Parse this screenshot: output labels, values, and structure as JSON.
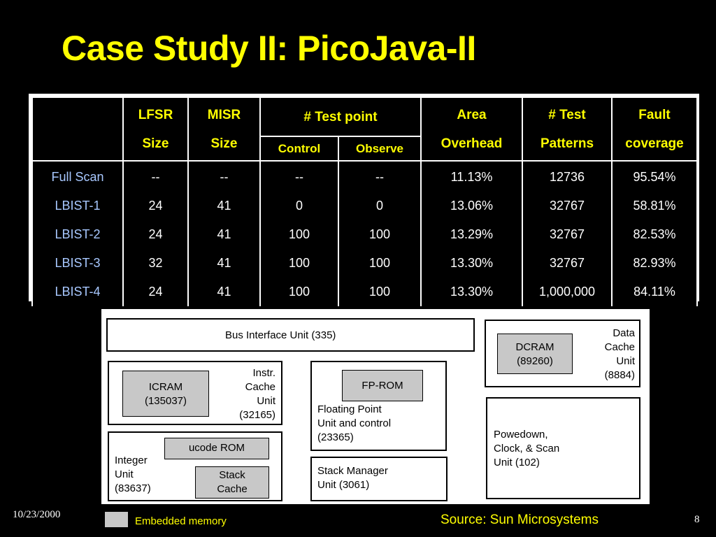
{
  "title": "Case Study II: PicoJava-II",
  "table": {
    "headers": {
      "lfsr": [
        "LFSR",
        "Size"
      ],
      "misr": [
        "MISR",
        "Size"
      ],
      "test_point": "# Test point",
      "control": "Control",
      "observe": "Observe",
      "area": [
        "Area",
        "Overhead"
      ],
      "patterns": [
        "# Test",
        "Patterns"
      ],
      "fault": [
        "Fault",
        "coverage"
      ]
    },
    "rows": [
      {
        "name": "Full Scan",
        "lfsr": "--",
        "misr": "--",
        "control": "--",
        "observe": "--",
        "area": "11.13%",
        "patterns": "12736",
        "fault": "95.54%"
      },
      {
        "name": "LBIST-1",
        "lfsr": "24",
        "misr": "41",
        "control": "0",
        "observe": "0",
        "area": "13.06%",
        "patterns": "32767",
        "fault": "58.81%"
      },
      {
        "name": "LBIST-2",
        "lfsr": "24",
        "misr": "41",
        "control": "100",
        "observe": "100",
        "area": "13.29%",
        "patterns": "32767",
        "fault": "82.53%"
      },
      {
        "name": "LBIST-3",
        "lfsr": "32",
        "misr": "41",
        "control": "100",
        "observe": "100",
        "area": "13.30%",
        "patterns": "32767",
        "fault": "82.93%"
      },
      {
        "name": "LBIST-4",
        "lfsr": "24",
        "misr": "41",
        "control": "100",
        "observe": "100",
        "area": "13.30%",
        "patterns": "1,000,000",
        "fault": "84.11%"
      }
    ]
  },
  "diagram": {
    "bus_interface": "Bus Interface Unit (335)",
    "data_cache": [
      "Data",
      "Cache",
      "Unit",
      "(8884)"
    ],
    "dcram": [
      "DCRAM",
      "(89260)"
    ],
    "instr_cache": [
      "Instr.",
      "Cache",
      "Unit",
      "(32165)"
    ],
    "icram": [
      "ICRAM",
      "(135037)"
    ],
    "fp_rom": "FP-ROM",
    "floating_point": [
      "Floating Point",
      "Unit and control",
      "(23365)"
    ],
    "powerdown": [
      "Powedown,",
      "Clock, & Scan",
      "Unit (102)"
    ],
    "integer_unit": [
      "Integer",
      "Unit",
      "(83637)"
    ],
    "ucode_rom": "ucode ROM",
    "stack_cache": [
      "Stack",
      "Cache"
    ],
    "stack_manager": [
      "Stack Manager",
      "Unit (3061)"
    ]
  },
  "footer": {
    "date": "10/23/2000",
    "legend": "Embedded memory",
    "source": "Source: Sun Microsystems",
    "page": "8"
  },
  "colors": {
    "background": "#000000",
    "title": "#ffff00",
    "row_names": "#a8c8ff",
    "memory_fill": "#c8c8c8"
  }
}
